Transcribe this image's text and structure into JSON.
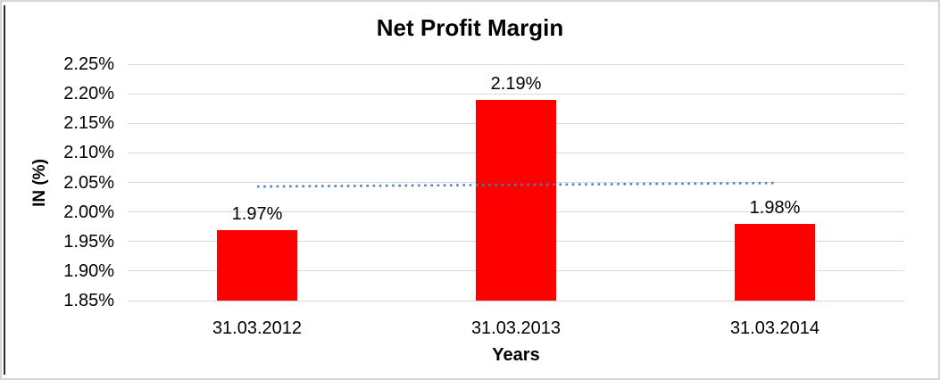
{
  "chart_data": {
    "type": "bar",
    "title": "Net Profit Margin",
    "xlabel": "Years",
    "ylabel": "IN (%)",
    "categories": [
      "31.03.2012",
      "31.03.2013",
      "31.03.2014"
    ],
    "values": [
      1.97,
      2.19,
      1.98
    ],
    "value_labels": [
      "1.97%",
      "2.19%",
      "1.98%"
    ],
    "ylim": [
      1.85,
      2.25
    ],
    "y_step": 0.05,
    "y_tick_labels": [
      "2.25%",
      "2.20%",
      "2.15%",
      "2.10%",
      "2.05%",
      "2.00%",
      "1.95%",
      "1.90%",
      "1.85%"
    ],
    "grid": true,
    "legend": "none",
    "trendline": {
      "type": "linear",
      "style": "dotted",
      "start_value": 2.043,
      "end_value": 2.049
    }
  },
  "colors": {
    "bar": "#FF0000",
    "trendline": "#4F81BD",
    "gridline": "#D9D9D9",
    "text": "#000000",
    "frame": "#D6D6D6"
  }
}
